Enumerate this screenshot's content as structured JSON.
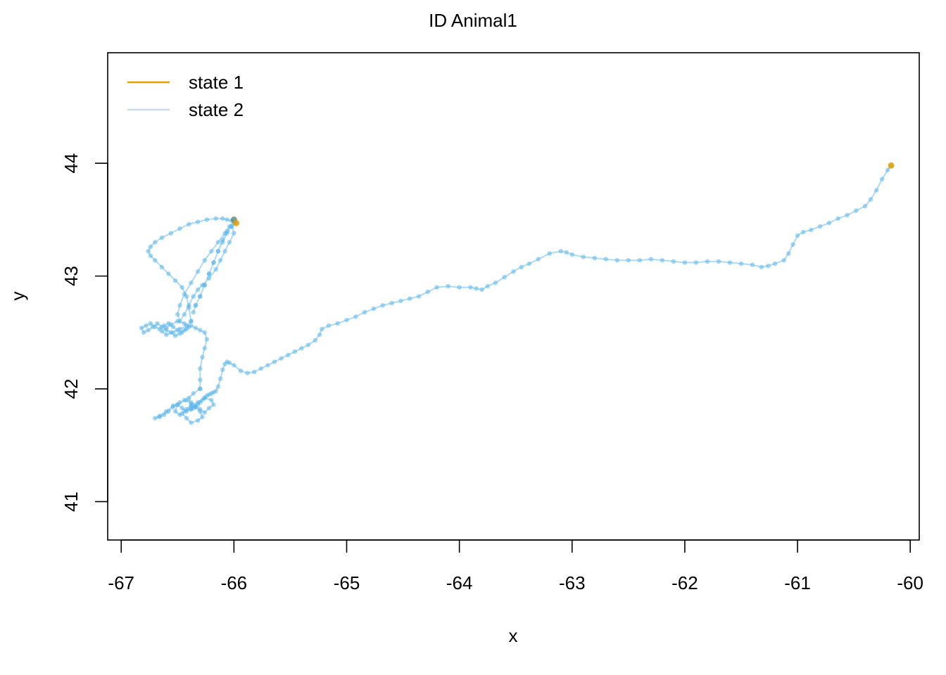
{
  "chart_data": {
    "type": "line",
    "title": "ID Animal1",
    "xlabel": "x",
    "ylabel": "y",
    "xlim": [
      -67.12,
      -59.92
    ],
    "ylim": [
      40.66,
      44.98
    ],
    "xticks": [
      -67,
      -66,
      -65,
      -64,
      -63,
      -62,
      -61,
      -60
    ],
    "yticks": [
      41,
      42,
      43,
      44
    ],
    "grid": false,
    "legend_position": "top-left",
    "legend": [
      {
        "label": "state 1",
        "color": "#E69F00"
      },
      {
        "label": "state 2",
        "color": "#C6DBEF"
      }
    ],
    "series": [
      {
        "name": "state 2",
        "color": "#56B4E9",
        "x": [
          -60.17,
          -60.2,
          -60.25,
          -60.3,
          -60.35,
          -60.4,
          -60.48,
          -60.56,
          -60.64,
          -60.72,
          -60.8,
          -60.88,
          -60.95,
          -61.0,
          -61.04,
          -61.08,
          -61.12,
          -61.2,
          -61.26,
          -61.32,
          -61.4,
          -61.5,
          -61.6,
          -61.7,
          -61.8,
          -61.9,
          -62.0,
          -62.1,
          -62.2,
          -62.3,
          -62.4,
          -62.5,
          -62.6,
          -62.7,
          -62.8,
          -62.9,
          -63.0,
          -63.05,
          -63.1,
          -63.2,
          -63.3,
          -63.38,
          -63.45,
          -63.52,
          -63.6,
          -63.68,
          -63.75,
          -63.8,
          -63.85,
          -63.9,
          -64.0,
          -64.1,
          -64.2,
          -64.28,
          -64.36,
          -64.44,
          -64.52,
          -64.6,
          -64.68,
          -64.76,
          -64.84,
          -64.92,
          -65.0,
          -65.08,
          -65.16,
          -65.22,
          -65.24,
          -65.28,
          -65.34,
          -65.4,
          -65.46,
          -65.52,
          -65.58,
          -65.64,
          -65.7,
          -65.76,
          -65.82,
          -65.88,
          -65.94,
          -66.0,
          -66.04,
          -66.06,
          -66.08,
          -66.1,
          -66.12,
          -66.14,
          -66.16,
          -66.18,
          -66.2,
          -66.22,
          -66.24,
          -66.26,
          -66.28,
          -66.3,
          -66.32,
          -66.34,
          -66.36,
          -66.38
        ],
        "y": [
          43.98,
          43.94,
          43.86,
          43.76,
          43.68,
          43.62,
          43.58,
          43.54,
          43.51,
          43.47,
          43.44,
          43.41,
          43.39,
          43.36,
          43.28,
          43.2,
          43.14,
          43.11,
          43.09,
          43.08,
          43.1,
          43.11,
          43.12,
          43.13,
          43.13,
          43.12,
          43.12,
          43.13,
          43.14,
          43.15,
          43.14,
          43.14,
          43.14,
          43.15,
          43.16,
          43.17,
          43.19,
          43.21,
          43.22,
          43.2,
          43.15,
          43.11,
          43.08,
          43.04,
          42.99,
          42.94,
          42.91,
          42.88,
          42.89,
          42.9,
          42.9,
          42.91,
          42.9,
          42.86,
          42.82,
          42.8,
          42.78,
          42.76,
          42.74,
          42.71,
          42.68,
          42.64,
          42.61,
          42.58,
          42.56,
          42.53,
          42.48,
          42.43,
          42.39,
          42.36,
          42.33,
          42.3,
          42.27,
          42.24,
          42.21,
          42.18,
          42.15,
          42.14,
          42.16,
          42.21,
          42.23,
          42.24,
          42.22,
          42.17,
          42.09,
          42.02,
          41.98,
          41.97,
          41.96,
          41.95,
          41.94,
          41.92,
          41.9,
          41.88,
          41.86,
          41.84,
          41.83,
          41.82
        ]
      },
      {
        "name": "",
        "color": "#56B4E9",
        "x": [
          -66.38,
          -66.42,
          -66.46,
          -66.5,
          -66.54,
          -66.58,
          -66.62,
          -66.66,
          -66.7,
          -66.66,
          -66.6,
          -66.54,
          -66.48,
          -66.42,
          -66.36,
          -66.3,
          -66.26,
          -66.22,
          -66.18,
          -66.2,
          -66.26,
          -66.32,
          -66.38,
          -66.44,
          -66.48,
          -66.52,
          -66.5,
          -66.44,
          -66.38,
          -66.34,
          -66.3,
          -66.28,
          -66.32,
          -66.38,
          -66.42,
          -66.46,
          -66.42,
          -66.38,
          -66.4,
          -66.36,
          -66.3
        ],
        "y": [
          41.82,
          41.8,
          41.83,
          41.86,
          41.84,
          41.8,
          41.77,
          41.75,
          41.74,
          41.76,
          41.8,
          41.85,
          41.88,
          41.9,
          41.86,
          41.82,
          41.79,
          41.83,
          41.86,
          41.9,
          41.92,
          41.88,
          41.84,
          41.8,
          41.77,
          41.8,
          41.86,
          41.9,
          41.88,
          41.84,
          41.8,
          41.75,
          41.72,
          41.7,
          41.74,
          41.78,
          41.82,
          41.86,
          41.92,
          41.96,
          42.0
        ]
      },
      {
        "name": "",
        "color": "#56B4E9",
        "x": [
          -66.3,
          -66.3,
          -66.3,
          -66.28,
          -66.26,
          -66.24,
          -66.26,
          -66.3,
          -66.34,
          -66.38,
          -66.42,
          -66.46,
          -66.5,
          -66.54,
          -66.58,
          -66.62,
          -66.66,
          -66.7,
          -66.74,
          -66.78,
          -66.82,
          -66.8,
          -66.76,
          -66.72,
          -66.68,
          -66.64,
          -66.6,
          -66.56,
          -66.52,
          -66.48,
          -66.44,
          -66.4,
          -66.44,
          -66.5,
          -66.56,
          -66.6,
          -66.64,
          -66.6,
          -66.54,
          -66.48,
          -66.42,
          -66.38
        ],
        "y": [
          42.0,
          42.08,
          42.18,
          42.28,
          42.36,
          42.44,
          42.5,
          42.52,
          42.54,
          42.56,
          42.53,
          42.5,
          42.52,
          42.55,
          42.58,
          42.56,
          42.53,
          42.55,
          42.58,
          42.56,
          42.54,
          42.5,
          42.52,
          42.55,
          42.58,
          42.55,
          42.52,
          42.5,
          42.47,
          42.49,
          42.52,
          42.55,
          42.58,
          42.6,
          42.57,
          42.54,
          42.51,
          42.48,
          42.5,
          42.53,
          42.56,
          42.6
        ]
      },
      {
        "name": "",
        "color": "#56B4E9",
        "x": [
          -66.38,
          -66.4,
          -66.42,
          -66.46,
          -66.52,
          -66.58,
          -66.64,
          -66.7,
          -66.74,
          -66.76,
          -66.74,
          -66.7,
          -66.64,
          -66.56,
          -66.48,
          -66.4,
          -66.32,
          -66.24,
          -66.16,
          -66.1,
          -66.06,
          -66.02,
          -66.0
        ],
        "y": [
          42.6,
          42.72,
          42.82,
          42.9,
          42.96,
          43.02,
          43.08,
          43.14,
          43.18,
          43.22,
          43.26,
          43.3,
          43.34,
          43.38,
          43.42,
          43.46,
          43.48,
          43.5,
          43.51,
          43.51,
          43.5,
          43.49,
          43.48
        ]
      },
      {
        "name": "",
        "color": "#56B4E9",
        "x": [
          -66.0,
          -66.04,
          -66.08,
          -66.14,
          -66.2,
          -66.26,
          -66.32,
          -66.38,
          -66.44,
          -66.48,
          -66.5,
          -66.48,
          -66.44,
          -66.4,
          -66.36,
          -66.32,
          -66.28,
          -66.22,
          -66.16,
          -66.12,
          -66.08,
          -66.04,
          -66.0,
          -66.02,
          -66.06,
          -66.1,
          -66.14,
          -66.18,
          -66.22,
          -66.26,
          -66.3,
          -66.34,
          -66.36,
          -66.34,
          -66.3,
          -66.26,
          -66.22,
          -66.18,
          -66.14,
          -66.1,
          -66.06,
          -66.02,
          -65.99
        ],
        "y": [
          43.48,
          43.44,
          43.38,
          43.3,
          43.22,
          43.14,
          43.04,
          42.94,
          42.84,
          42.74,
          42.66,
          42.6,
          42.66,
          42.74,
          42.82,
          42.88,
          42.92,
          42.98,
          43.06,
          43.14,
          43.22,
          43.3,
          43.38,
          43.44,
          43.4,
          43.32,
          43.22,
          43.12,
          43.02,
          42.92,
          42.82,
          42.74,
          42.68,
          42.74,
          42.82,
          42.92,
          43.02,
          43.12,
          43.22,
          43.3,
          43.38,
          43.44,
          43.47
        ]
      }
    ],
    "markers": [
      {
        "label": "start",
        "x": -66.0,
        "y": 43.5,
        "color": "#6B8F7A"
      },
      {
        "label": "state 1",
        "x": -65.98,
        "y": 43.47,
        "color": "#E69F00"
      },
      {
        "label": "state 1",
        "x": -60.17,
        "y": 43.98,
        "color": "#E69F00"
      }
    ]
  }
}
